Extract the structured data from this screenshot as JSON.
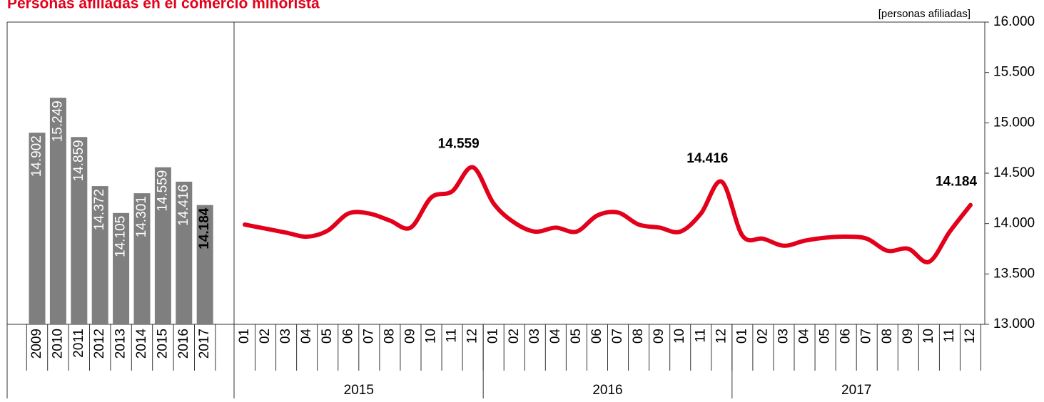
{
  "title": "Personas afiliadas en el comercio minorista",
  "unit": "[personas afiliadas]",
  "chart_data": [
    {
      "type": "bar",
      "categories": [
        "2009",
        "2010",
        "2011",
        "2012",
        "2013",
        "2014",
        "2015",
        "2016",
        "2017"
      ],
      "values": [
        14902,
        15249,
        14859,
        14372,
        14105,
        14301,
        14559,
        14416,
        14184
      ],
      "value_labels": [
        "14.902",
        "15.249",
        "14.859",
        "14.372",
        "14.105",
        "14.301",
        "14.559",
        "14.416",
        "14.184"
      ],
      "color": "#7f7f7f",
      "ylim": [
        13000,
        16000
      ]
    },
    {
      "type": "line",
      "categories": [
        "01",
        "02",
        "03",
        "04",
        "05",
        "06",
        "07",
        "08",
        "09",
        "10",
        "11",
        "12",
        "01",
        "02",
        "03",
        "04",
        "05",
        "06",
        "07",
        "08",
        "09",
        "10",
        "11",
        "12",
        "01",
        "02",
        "03",
        "04",
        "05",
        "06",
        "07",
        "08",
        "09",
        "10",
        "11",
        "12"
      ],
      "years": [
        "2015",
        "2016",
        "2017"
      ],
      "values": [
        13990,
        13950,
        13910,
        13870,
        13930,
        14100,
        14100,
        14030,
        13960,
        14260,
        14320,
        14559,
        14200,
        14010,
        13920,
        13960,
        13920,
        14080,
        14110,
        13990,
        13960,
        13920,
        14100,
        14416,
        13880,
        13850,
        13780,
        13830,
        13860,
        13870,
        13850,
        13730,
        13750,
        13620,
        13920,
        14184
      ],
      "value_labels": [
        null,
        null,
        null,
        null,
        null,
        null,
        null,
        null,
        null,
        null,
        null,
        "14.559",
        null,
        null,
        null,
        null,
        null,
        null,
        null,
        null,
        null,
        null,
        null,
        "14.416",
        null,
        null,
        null,
        null,
        null,
        null,
        null,
        null,
        null,
        null,
        null,
        "14.184"
      ],
      "color": "#e2001a",
      "ylim": [
        13000,
        16000
      ],
      "yticks": [
        {
          "value": 13000,
          "label": "13.000"
        },
        {
          "value": 13500,
          "label": "13.500"
        },
        {
          "value": 14000,
          "label": "14.000"
        },
        {
          "value": 14500,
          "label": "14.500"
        },
        {
          "value": 15000,
          "label": "15.000"
        },
        {
          "value": 15500,
          "label": "15.500"
        },
        {
          "value": 16000,
          "label": "16.000"
        }
      ]
    }
  ]
}
